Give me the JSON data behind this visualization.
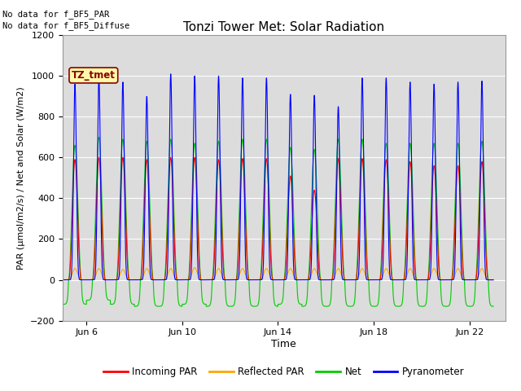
{
  "title": "Tonzi Tower Met: Solar Radiation",
  "ylabel": "PAR (μmol/m2/s) / Net and Solar (W/m2)",
  "xlabel": "Time",
  "ylim": [
    -200,
    1200
  ],
  "yticks": [
    -200,
    0,
    200,
    400,
    600,
    800,
    1000,
    1200
  ],
  "xtick_labels": [
    "Jun 6",
    "Jun 10",
    "Jun 14",
    "Jun 18",
    "Jun 22"
  ],
  "note1": "No data for f_BF5_PAR",
  "note2": "No data for f_BF5_Diffuse",
  "label_box": "TZ_tmet",
  "legend_labels": [
    "Incoming PAR",
    "Reflected PAR",
    "Net",
    "Pyranometer"
  ],
  "legend_colors": [
    "#ff0000",
    "#ffa500",
    "#00cc00",
    "#0000ff"
  ],
  "plot_bg": "#dcdcdc",
  "num_days": 18,
  "xlim_start": 5.0,
  "xlim_end": 23.5,
  "pyranometer_max": [
    960,
    990,
    970,
    900,
    1010,
    1000,
    1000,
    990,
    990,
    910,
    905,
    850,
    990,
    990,
    970,
    960,
    970,
    975
  ],
  "incoming_par_max": [
    590,
    600,
    600,
    590,
    600,
    600,
    590,
    595,
    595,
    510,
    440,
    595,
    595,
    590,
    580,
    560,
    560,
    580
  ],
  "net_max": [
    660,
    700,
    690,
    680,
    690,
    670,
    680,
    690,
    690,
    650,
    640,
    690,
    690,
    670,
    670,
    670,
    670,
    680
  ],
  "net_min": [
    -120,
    -100,
    -120,
    -130,
    -130,
    -120,
    -130,
    -130,
    -130,
    -120,
    -130,
    -130,
    -130,
    -130,
    -130,
    -130,
    -130,
    -130
  ],
  "reflected_par_max": [
    55,
    55,
    50,
    55,
    55,
    60,
    55,
    55,
    55,
    55,
    55,
    55,
    55,
    55,
    55,
    55,
    55,
    55
  ]
}
